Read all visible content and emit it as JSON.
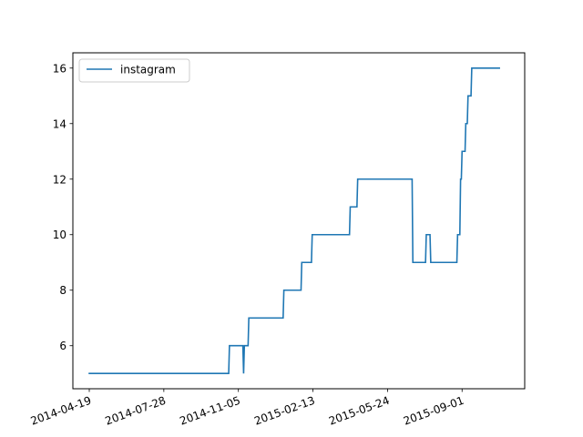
{
  "chart_data": {
    "type": "line",
    "x_type": "date",
    "xlim": [
      "2014-03-28",
      "2015-11-24"
    ],
    "ylim": [
      4.45,
      16.55
    ],
    "x_ticks": [
      "2014-04-19",
      "2014-07-28",
      "2014-11-05",
      "2015-02-13",
      "2015-05-24",
      "2015-09-01"
    ],
    "y_ticks": [
      6,
      8,
      10,
      12,
      14,
      16
    ],
    "y_tick_labels": [
      "6",
      "8",
      "10",
      "12",
      "14",
      "16"
    ],
    "grid": false,
    "legend": {
      "position": "upper-left"
    },
    "series": [
      {
        "name": "instagram",
        "color": "#1f77b4",
        "points": [
          {
            "x": "2014-04-19",
            "y": 5
          },
          {
            "x": "2014-10-23",
            "y": 5
          },
          {
            "x": "2014-10-24",
            "y": 6
          },
          {
            "x": "2014-11-11",
            "y": 6
          },
          {
            "x": "2014-11-12",
            "y": 5
          },
          {
            "x": "2014-11-13",
            "y": 6
          },
          {
            "x": "2014-11-18",
            "y": 6
          },
          {
            "x": "2014-11-19",
            "y": 7
          },
          {
            "x": "2015-01-04",
            "y": 7
          },
          {
            "x": "2015-01-05",
            "y": 8
          },
          {
            "x": "2015-01-28",
            "y": 8
          },
          {
            "x": "2015-01-29",
            "y": 9
          },
          {
            "x": "2015-02-11",
            "y": 9
          },
          {
            "x": "2015-02-12",
            "y": 10
          },
          {
            "x": "2015-04-03",
            "y": 10
          },
          {
            "x": "2015-04-04",
            "y": 11
          },
          {
            "x": "2015-04-13",
            "y": 11
          },
          {
            "x": "2015-04-14",
            "y": 12
          },
          {
            "x": "2015-06-26",
            "y": 12
          },
          {
            "x": "2015-06-27",
            "y": 9
          },
          {
            "x": "2015-07-14",
            "y": 9
          },
          {
            "x": "2015-07-15",
            "y": 10
          },
          {
            "x": "2015-07-20",
            "y": 10
          },
          {
            "x": "2015-07-21",
            "y": 9
          },
          {
            "x": "2015-08-25",
            "y": 9
          },
          {
            "x": "2015-08-26",
            "y": 10
          },
          {
            "x": "2015-08-29",
            "y": 10
          },
          {
            "x": "2015-08-30",
            "y": 12
          },
          {
            "x": "2015-08-31",
            "y": 12
          },
          {
            "x": "2015-09-01",
            "y": 13
          },
          {
            "x": "2015-09-05",
            "y": 13
          },
          {
            "x": "2015-09-06",
            "y": 14
          },
          {
            "x": "2015-09-08",
            "y": 14
          },
          {
            "x": "2015-09-09",
            "y": 15
          },
          {
            "x": "2015-09-13",
            "y": 15
          },
          {
            "x": "2015-09-14",
            "y": 16
          },
          {
            "x": "2015-10-21",
            "y": 16
          }
        ]
      }
    ]
  }
}
